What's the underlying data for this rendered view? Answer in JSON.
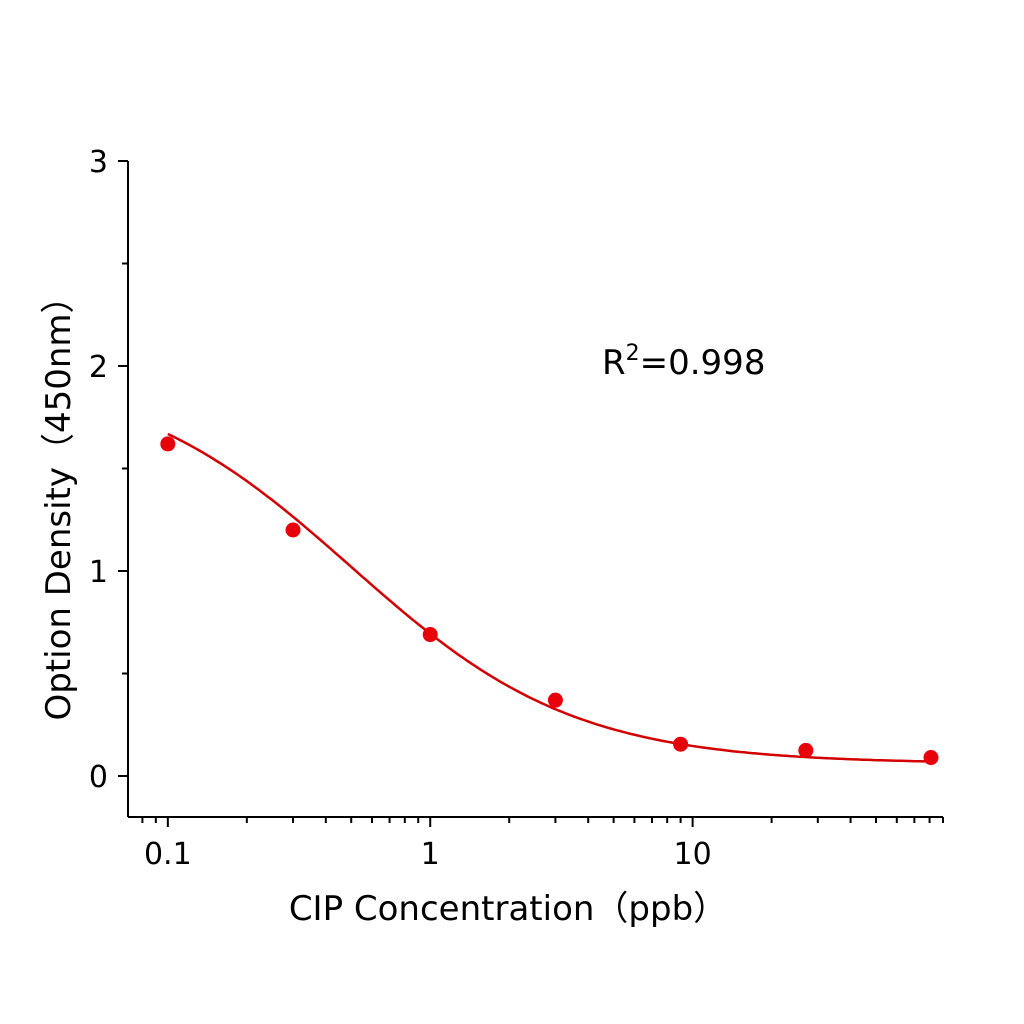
{
  "chart_data": {
    "type": "scatter",
    "title": "",
    "xlabel": "CIP Concentration（ppb）",
    "ylabel": "Option Density（450nm）",
    "xscale": "log",
    "xlim": [
      0.0705,
      90
    ],
    "ylim": [
      -0.2,
      3
    ],
    "x_ticks": [
      "0.1",
      "1",
      "10"
    ],
    "y_ticks": [
      "0",
      "1",
      "2",
      "3"
    ],
    "grid": false,
    "legend": "none",
    "annotation": {
      "prefix": "R",
      "sup": "2",
      "suffix": "=0.998"
    },
    "series": [
      {
        "x": [
          0.1,
          0.3,
          1,
          3,
          9,
          27,
          81
        ],
        "y": [
          1.62,
          1.2,
          0.69,
          0.37,
          0.155,
          0.125,
          0.09
        ],
        "color": "#e8000b"
      }
    ],
    "fit": {
      "model": "4PL",
      "top": 1.98,
      "bottom": 0.06,
      "ec50": 0.5,
      "hill": 1.02,
      "color": "#d40000"
    }
  }
}
